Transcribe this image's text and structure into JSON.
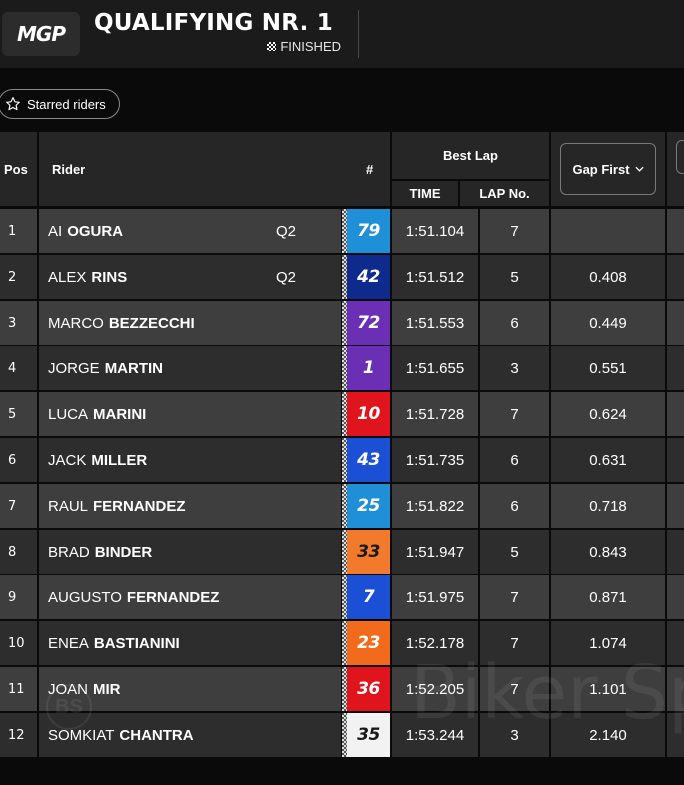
{
  "header": {
    "logo": "MGP",
    "title": "QUALIFYING NR. 1",
    "status": "FINISHED",
    "status_icon": "checkered-flag-icon"
  },
  "filters": {
    "starred_label": "Starred riders",
    "starred_icon": "star-outline-icon"
  },
  "table": {
    "columns": {
      "pos": "Pos",
      "rider": "Rider",
      "number": "#",
      "best_lap": "Best Lap",
      "time": "TIME",
      "lap_no": "LAP No.",
      "gap": "Gap First"
    },
    "rows": [
      {
        "pos": "1",
        "first": "AI",
        "last": "OGURA",
        "tag": "Q2",
        "number": "79",
        "num_bg": "#1f8fd8",
        "num_fg": "#ffffff",
        "time": "1:51.104",
        "lap": "7",
        "gap": ""
      },
      {
        "pos": "2",
        "first": "ALEX",
        "last": "RINS",
        "tag": "Q2",
        "number": "42",
        "num_bg": "#0d2a8c",
        "num_fg": "#ffffff",
        "time": "1:51.512",
        "lap": "5",
        "gap": "0.408"
      },
      {
        "pos": "3",
        "first": "MARCO",
        "last": "BEZZECCHI",
        "tag": "",
        "number": "72",
        "num_bg": "#6a2fb5",
        "num_fg": "#ffffff",
        "time": "1:51.553",
        "lap": "6",
        "gap": "0.449"
      },
      {
        "pos": "4",
        "first": "JORGE",
        "last": "MARTIN",
        "tag": "",
        "number": "1",
        "num_bg": "#6a2fb5",
        "num_fg": "#ffffff",
        "time": "1:51.655",
        "lap": "3",
        "gap": "0.551"
      },
      {
        "pos": "5",
        "first": "LUCA",
        "last": "MARINI",
        "tag": "",
        "number": "10",
        "num_bg": "#e0141c",
        "num_fg": "#ffffff",
        "time": "1:51.728",
        "lap": "7",
        "gap": "0.624"
      },
      {
        "pos": "6",
        "first": "JACK",
        "last": "MILLER",
        "tag": "",
        "number": "43",
        "num_bg": "#1a4fd6",
        "num_fg": "#ffffff",
        "time": "1:51.735",
        "lap": "6",
        "gap": "0.631"
      },
      {
        "pos": "7",
        "first": "RAUL",
        "last": "FERNANDEZ",
        "tag": "",
        "number": "25",
        "num_bg": "#1f8fd8",
        "num_fg": "#ffffff",
        "time": "1:51.822",
        "lap": "6",
        "gap": "0.718"
      },
      {
        "pos": "8",
        "first": "BRAD",
        "last": "BINDER",
        "tag": "",
        "number": "33",
        "num_bg": "#f27a2c",
        "num_fg": "#1a1a1a",
        "time": "1:51.947",
        "lap": "5",
        "gap": "0.843"
      },
      {
        "pos": "9",
        "first": "AUGUSTO",
        "last": "FERNANDEZ",
        "tag": "",
        "number": "7",
        "num_bg": "#1a4fd6",
        "num_fg": "#ffffff",
        "time": "1:51.975",
        "lap": "7",
        "gap": "0.871"
      },
      {
        "pos": "10",
        "first": "ENEA",
        "last": "BASTIANINI",
        "tag": "",
        "number": "23",
        "num_bg": "#f26a1b",
        "num_fg": "#ffffff",
        "time": "1:52.178",
        "lap": "7",
        "gap": "1.074"
      },
      {
        "pos": "11",
        "first": "JOAN",
        "last": "MIR",
        "tag": "",
        "number": "36",
        "num_bg": "#e0141c",
        "num_fg": "#ffffff",
        "time": "1:52.205",
        "lap": "7",
        "gap": "1.101"
      },
      {
        "pos": "12",
        "first": "SOMKIAT",
        "last": "CHANTRA",
        "tag": "",
        "number": "35",
        "num_bg": "#f2f2f2",
        "num_fg": "#1a1a1a",
        "time": "1:53.244",
        "lap": "3",
        "gap": "2.140"
      }
    ]
  },
  "watermark": {
    "text": "Biker Sp",
    "logo": "BS"
  },
  "colors": {
    "row_light": "#3e3e3e",
    "row_dark": "#2d2d2d",
    "header_bg": "#262626",
    "page_bg": "#0a0a0a"
  }
}
